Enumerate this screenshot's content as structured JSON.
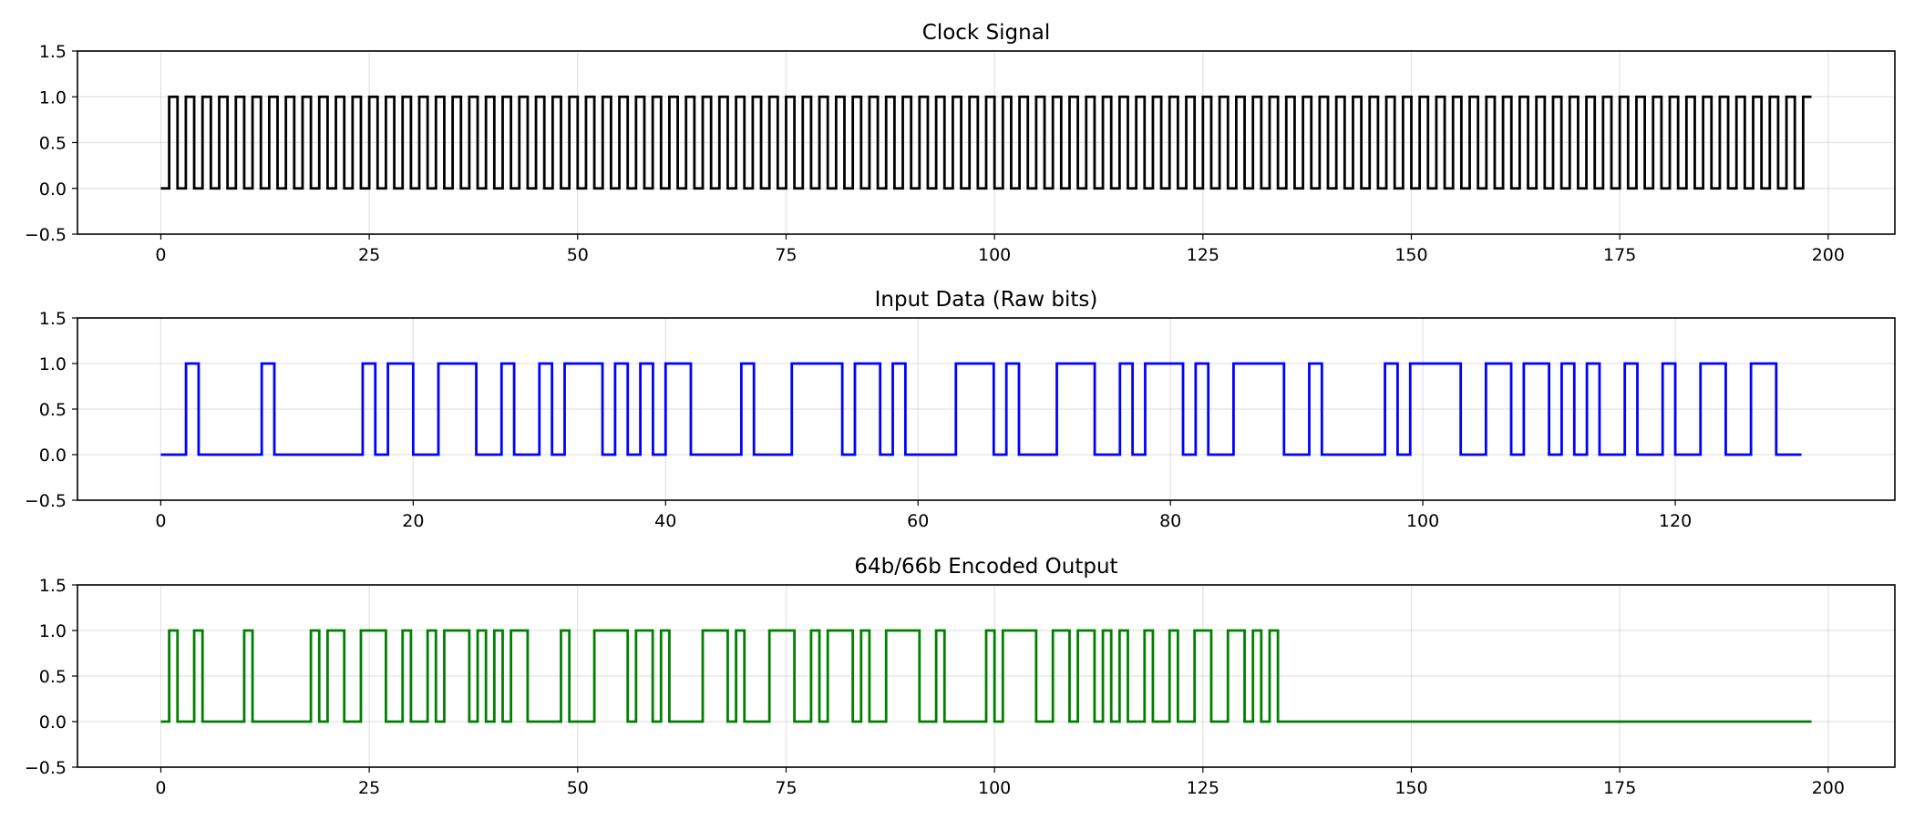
{
  "chart_data": [
    {
      "type": "line",
      "step": "post",
      "title": "Clock Signal",
      "xlabel": "",
      "ylabel": "",
      "xlim": [
        -10,
        208
      ],
      "ylim": [
        -0.5,
        1.5
      ],
      "xticks": [
        0,
        25,
        50,
        75,
        100,
        125,
        150,
        175,
        200
      ],
      "yticks": [
        -0.5,
        0.0,
        0.5,
        1.0,
        1.5
      ],
      "grid": true,
      "color": "#000000",
      "pattern": {
        "period": 2,
        "first_x": 0,
        "first_level": 0,
        "alternates_until": 197
      },
      "x_end": 198,
      "y_end": 1
    },
    {
      "type": "line",
      "step": "post",
      "title": "Input Data (Raw bits)",
      "xlabel": "",
      "ylabel": "",
      "xlim": [
        -6.6,
        137.4
      ],
      "ylim": [
        -0.5,
        1.5
      ],
      "xticks": [
        0,
        20,
        40,
        60,
        80,
        100,
        120
      ],
      "yticks": [
        -0.5,
        0.0,
        0.5,
        1.0,
        1.5
      ],
      "grid": true,
      "color": "#0000ff",
      "high_intervals": [
        [
          2,
          3
        ],
        [
          8,
          9
        ],
        [
          16,
          17
        ],
        [
          18,
          20
        ],
        [
          22,
          25
        ],
        [
          27,
          28
        ],
        [
          30,
          31
        ],
        [
          32,
          35
        ],
        [
          36,
          37
        ],
        [
          38,
          39
        ],
        [
          40,
          42
        ],
        [
          46,
          47
        ],
        [
          50,
          54
        ],
        [
          55,
          57
        ],
        [
          58,
          59
        ],
        [
          63,
          66
        ],
        [
          67,
          68
        ],
        [
          71,
          74
        ],
        [
          76,
          77
        ],
        [
          78,
          81
        ],
        [
          82,
          83
        ],
        [
          85,
          89
        ],
        [
          91,
          92
        ],
        [
          97,
          98
        ],
        [
          99,
          103
        ],
        [
          105,
          107
        ],
        [
          108,
          110
        ],
        [
          111,
          112
        ],
        [
          113,
          114
        ],
        [
          116,
          117
        ],
        [
          119,
          120
        ],
        [
          122,
          124
        ],
        [
          126,
          128
        ]
      ],
      "x_end": 130
    },
    {
      "type": "line",
      "step": "post",
      "title": "64b/66b Encoded Output",
      "xlabel": "",
      "ylabel": "",
      "xlim": [
        -10,
        208
      ],
      "ylim": [
        -0.5,
        1.5
      ],
      "xticks": [
        0,
        25,
        50,
        75,
        100,
        125,
        150,
        175,
        200
      ],
      "yticks": [
        -0.5,
        0.0,
        0.5,
        1.0,
        1.5
      ],
      "grid": true,
      "color": "#008000",
      "high_intervals": [
        [
          1,
          2
        ],
        [
          4,
          5
        ],
        [
          10,
          11
        ],
        [
          18,
          19
        ],
        [
          20,
          22
        ],
        [
          24,
          27
        ],
        [
          29,
          30
        ],
        [
          32,
          33
        ],
        [
          34,
          37
        ],
        [
          38,
          39
        ],
        [
          40,
          41
        ],
        [
          42,
          44
        ],
        [
          48,
          49
        ],
        [
          52,
          56
        ],
        [
          57,
          59
        ],
        [
          60,
          61
        ],
        [
          65,
          68
        ],
        [
          69,
          70
        ],
        [
          73,
          76
        ],
        [
          78,
          79
        ],
        [
          80,
          83
        ],
        [
          84,
          85
        ],
        [
          87,
          91
        ],
        [
          93,
          94
        ],
        [
          99,
          100
        ],
        [
          101,
          105
        ],
        [
          107,
          109
        ],
        [
          110,
          112
        ],
        [
          113,
          114
        ],
        [
          115,
          116
        ],
        [
          118,
          119
        ],
        [
          121,
          122
        ],
        [
          124,
          126
        ],
        [
          128,
          130
        ],
        [
          131,
          132
        ],
        [
          133,
          134
        ]
      ],
      "x_end": 198
    }
  ]
}
